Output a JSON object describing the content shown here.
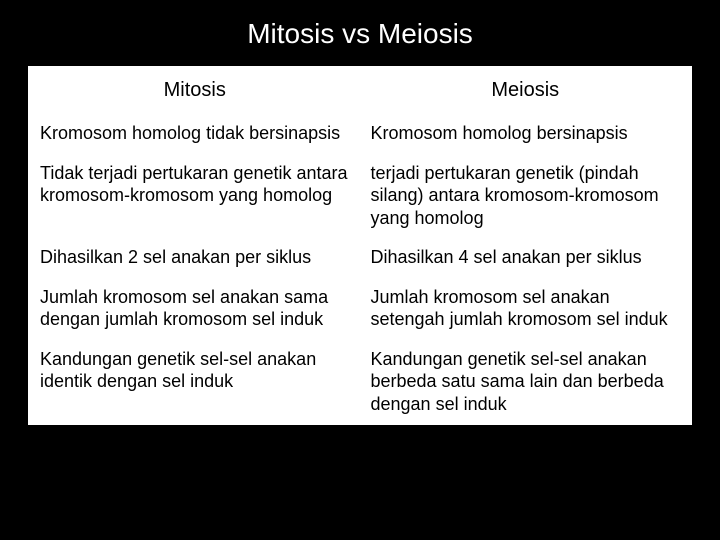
{
  "title": "Mitosis vs Meiosis",
  "table": {
    "columns": [
      "Mitosis",
      "Meiosis"
    ],
    "rows": [
      [
        "Kromosom homolog tidak bersinapsis",
        "Kromosom homolog bersinapsis"
      ],
      [
        "Tidak terjadi pertukaran genetik antara kromosom-kromosom yang homolog",
        "terjadi pertukaran genetik (pindah silang) antara kromosom-kromosom yang homolog"
      ],
      [
        "Dihasilkan 2 sel anakan per siklus",
        "Dihasilkan 4 sel anakan per siklus"
      ],
      [
        "Jumlah kromosom sel anakan sama dengan jumlah kromosom sel induk",
        "Jumlah kromosom sel anakan setengah jumlah kromosom sel induk"
      ],
      [
        "Kandungan genetik sel-sel anakan identik dengan sel induk",
        "Kandungan genetik sel-sel anakan berbeda satu sama lain dan berbeda dengan sel induk"
      ]
    ],
    "column_widths": [
      "50%",
      "50%"
    ],
    "border_color": "#ffffff",
    "cell_bg": "#ffffff",
    "text_color": "#000000",
    "header_fontsize": 20,
    "cell_fontsize": 18
  },
  "background_color": "#000000",
  "title_color": "#ffffff",
  "title_fontsize": 28
}
